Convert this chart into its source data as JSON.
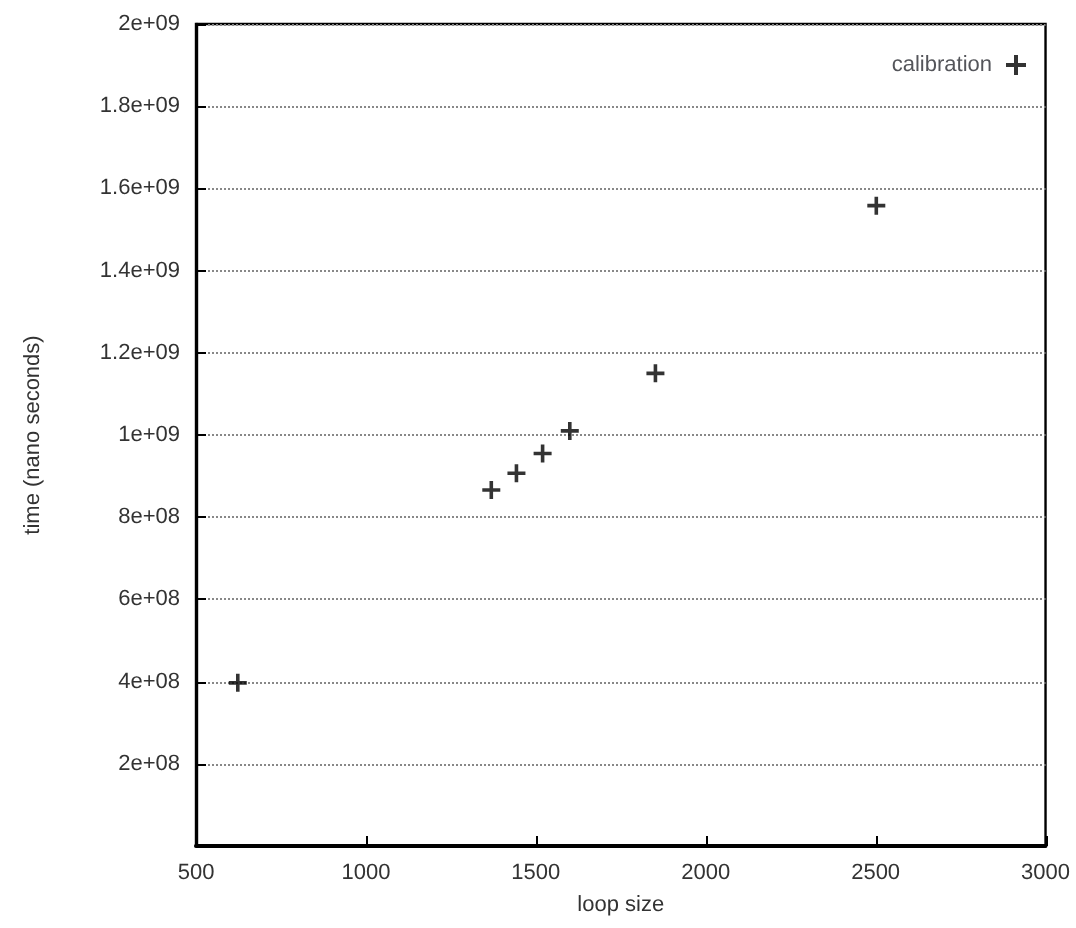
{
  "chart_data": {
    "type": "scatter",
    "xlabel": "loop size",
    "ylabel": "time (nano seconds)",
    "x": [
      623,
      1369,
      1443,
      1520,
      1600,
      1852,
      2502
    ],
    "series": [
      {
        "name": "calibration",
        "color": "#000000",
        "values": [
          397000000,
          866000000,
          907000000,
          955000000,
          1010000000,
          1150000000,
          1558000000
        ]
      }
    ],
    "xlim": [
      500,
      3000
    ],
    "xticks": [
      500,
      1000,
      1500,
      2000,
      2500,
      3000
    ],
    "ylim": [
      0,
      2000000000
    ],
    "yticks": [
      {
        "value": 200000000,
        "label": "2e+08"
      },
      {
        "value": 400000000,
        "label": "4e+08"
      },
      {
        "value": 600000000,
        "label": "6e+08"
      },
      {
        "value": 800000000,
        "label": "8e+08"
      },
      {
        "value": 1000000000,
        "label": "1e+09"
      },
      {
        "value": 1200000000,
        "label": "1.2e+09"
      },
      {
        "value": 1400000000,
        "label": "1.4e+09"
      },
      {
        "value": 1600000000,
        "label": "1.6e+09"
      },
      {
        "value": 1800000000,
        "label": "1.8e+09"
      },
      {
        "value": 2000000000,
        "label": "2e+09"
      }
    ],
    "grid": "y",
    "legend": "top right",
    "marker": "cross"
  }
}
